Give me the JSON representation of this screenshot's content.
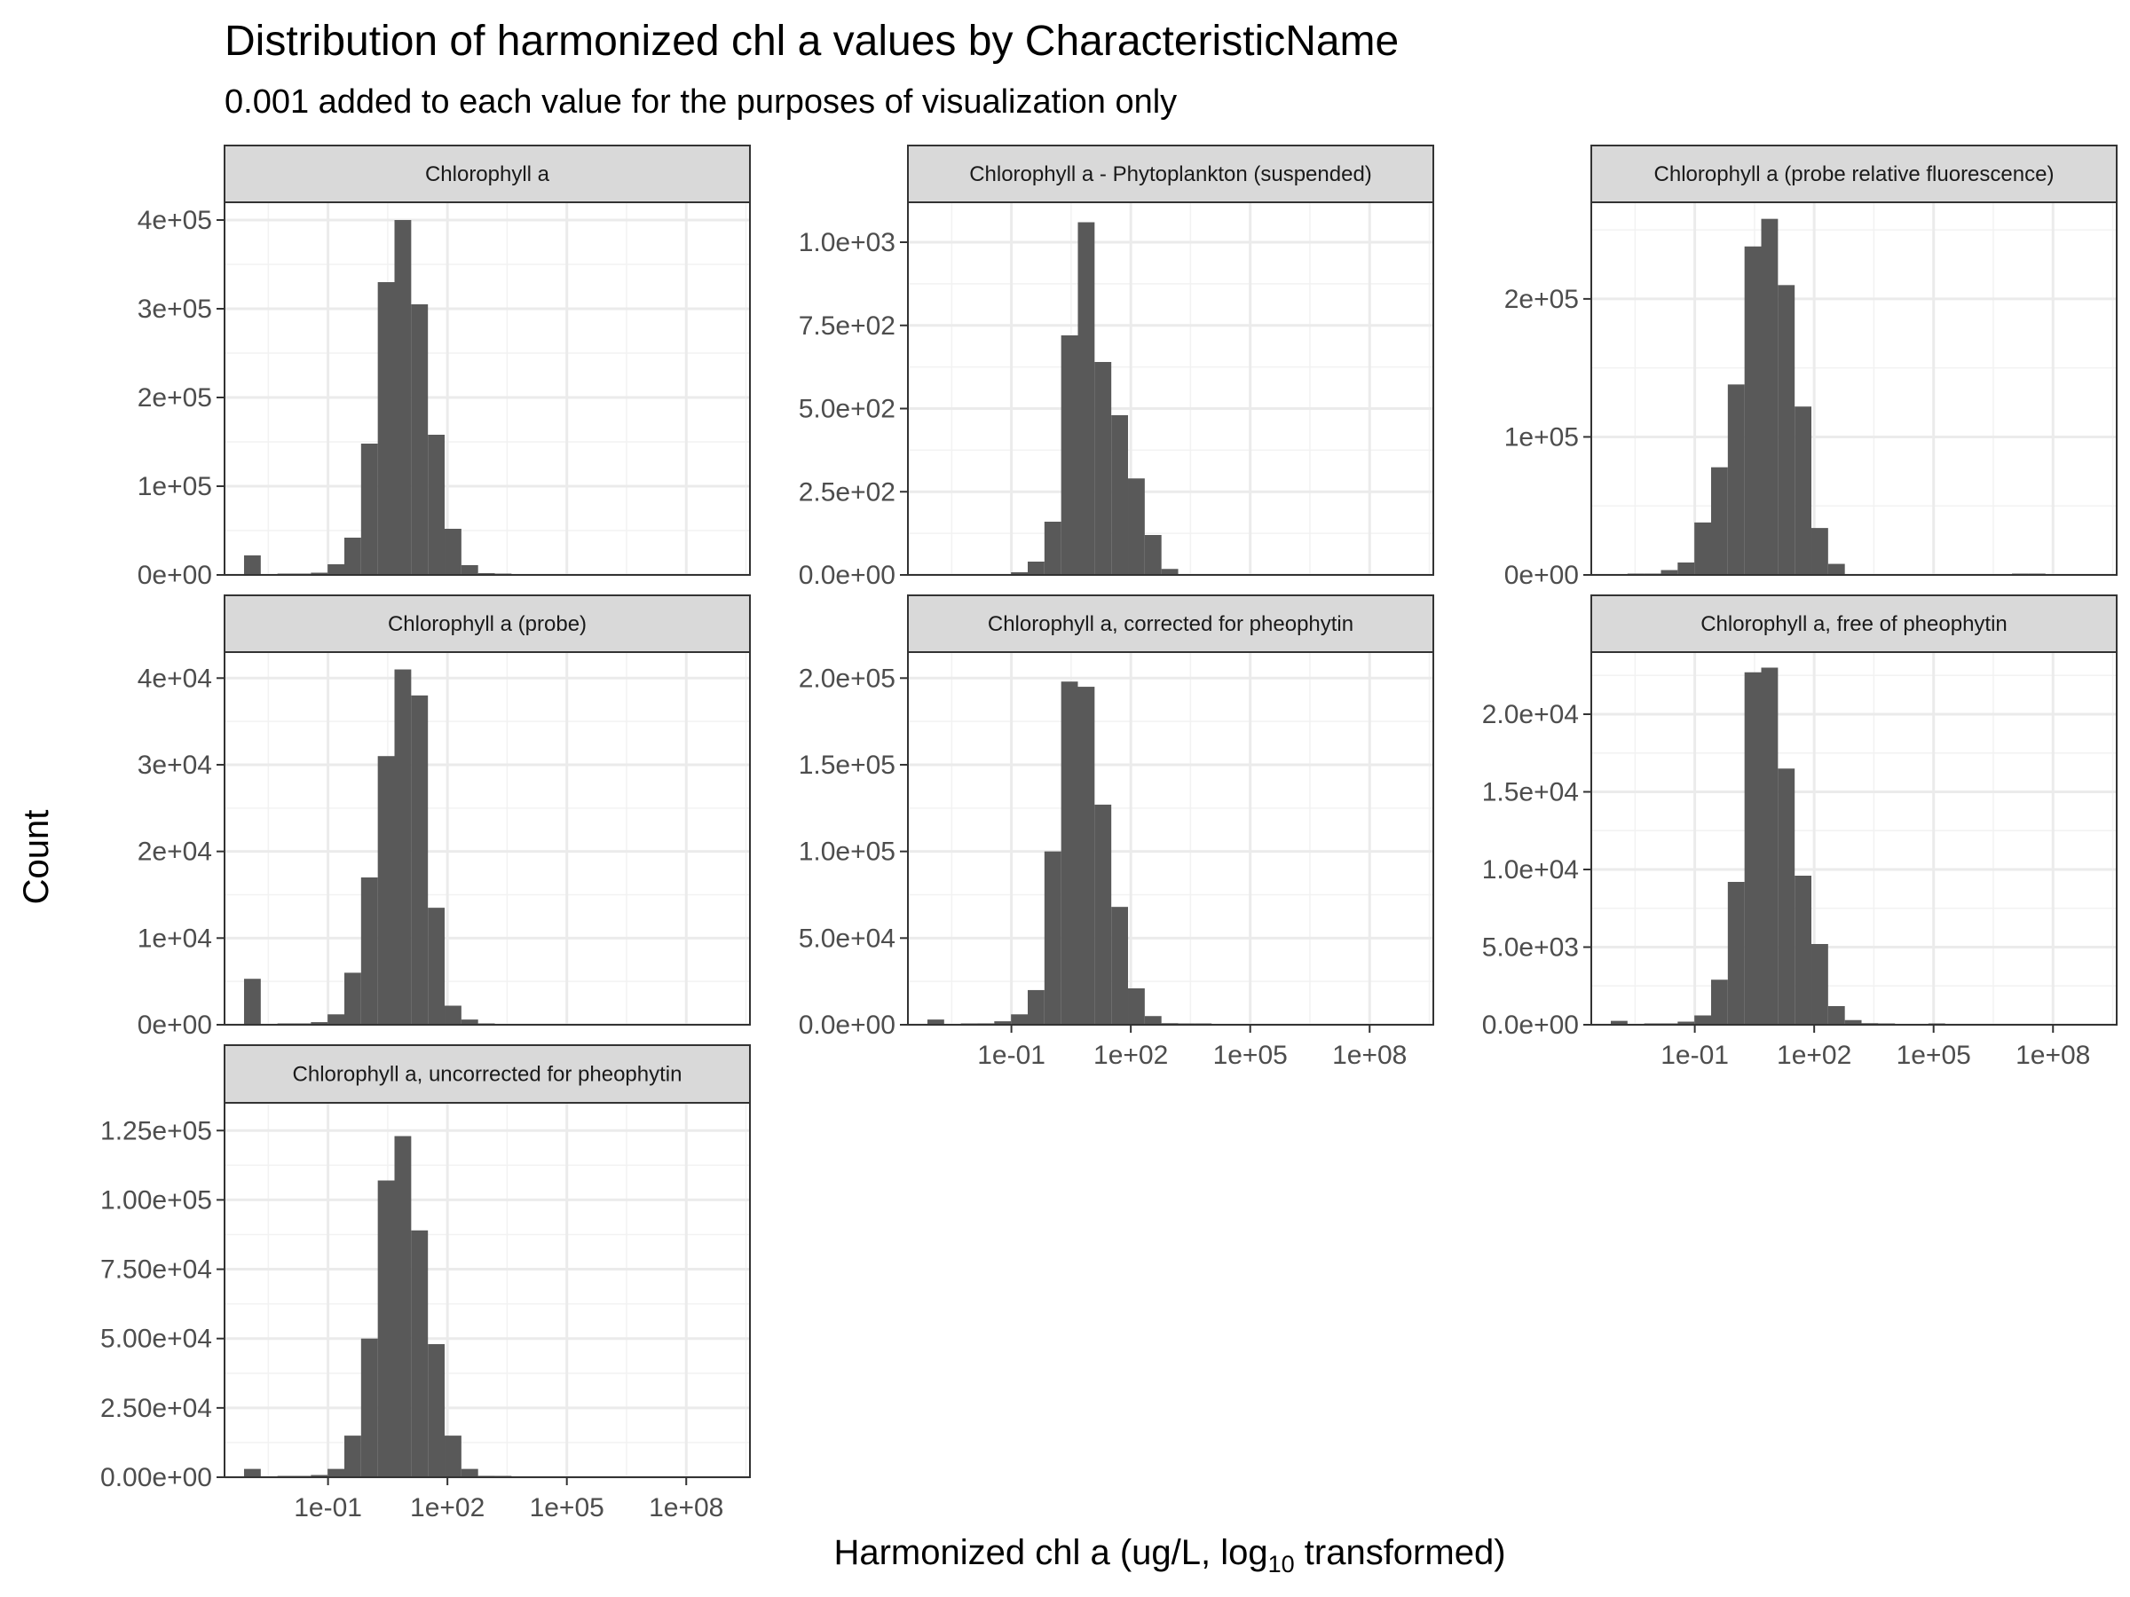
{
  "chart_data": {
    "type": "bar",
    "title": "Distribution of harmonized chl a values by CharacteristicName",
    "subtitle": "0.001 added to each value for the purposes of visualization only",
    "xlabel": {
      "prefix": "Harmonized chl a (ug/L,  log",
      "sub": "10",
      "suffix": "  transformed)"
    },
    "ylabel": "Count",
    "x_scale": "log10",
    "x_tick_labels": [
      "1e-01",
      "1e+02",
      "1e+05",
      "1e+08"
    ],
    "x_tick_values": [
      -1,
      2,
      5,
      8
    ],
    "x_limits_log10": [
      -3.6,
      9.6
    ],
    "bin_width_log10": 0.42,
    "bin_centers_log10": [
      -2.9,
      -2.48,
      -2.06,
      -1.64,
      -1.22,
      -0.8,
      -0.38,
      0.04,
      0.46,
      0.88,
      1.3,
      1.72,
      2.14,
      2.56,
      2.98,
      3.4,
      3.82,
      4.24,
      4.66,
      5.08,
      5.5,
      5.92,
      6.34,
      6.76,
      7.18,
      7.6,
      8.02,
      8.44
    ],
    "grid": true,
    "panels": [
      {
        "name": "Chlorophyll a",
        "y_ticks": [
          0,
          100000,
          200000,
          300000,
          400000
        ],
        "y_tick_labels": [
          "0e+00",
          "1e+05",
          "2e+05",
          "3e+05",
          "4e+05"
        ],
        "ylim": [
          0,
          420000
        ],
        "show_x_axis": false,
        "values": [
          22000,
          0,
          700,
          1000,
          2500,
          12000,
          42000,
          148000,
          330000,
          400000,
          305000,
          158000,
          52000,
          11000,
          2000,
          300,
          0,
          0,
          0,
          0,
          0,
          0,
          0,
          0,
          0,
          0,
          0,
          0
        ]
      },
      {
        "name": "Chlorophyll a - Phytoplankton (suspended)",
        "y_ticks": [
          0,
          250,
          500,
          750,
          1000
        ],
        "y_tick_labels": [
          "0.0e+00",
          "2.5e+02",
          "5.0e+02",
          "7.5e+02",
          "1.0e+03"
        ],
        "ylim": [
          0,
          1120
        ],
        "show_x_axis": false,
        "values": [
          0,
          0,
          0,
          0,
          0,
          8,
          40,
          160,
          720,
          1060,
          640,
          480,
          290,
          120,
          18,
          0,
          0,
          0,
          0,
          0,
          0,
          0,
          0,
          0,
          0,
          0,
          0,
          0
        ]
      },
      {
        "name": "Chlorophyll a (probe relative fluorescence)",
        "y_ticks": [
          0,
          100000,
          200000
        ],
        "y_tick_labels": [
          "0e+00",
          "1e+05",
          "2e+05"
        ],
        "ylim": [
          0,
          270000
        ],
        "show_x_axis": false,
        "values": [
          0,
          400,
          800,
          3500,
          9000,
          38000,
          78000,
          138000,
          238000,
          258000,
          210000,
          122000,
          34000,
          8000,
          0,
          0,
          0,
          0,
          0,
          0,
          0,
          0,
          0,
          0,
          400,
          300,
          0,
          0
        ]
      },
      {
        "name": "Chlorophyll a (probe)",
        "y_ticks": [
          0,
          10000,
          20000,
          30000,
          40000
        ],
        "y_tick_labels": [
          "0e+00",
          "1e+04",
          "2e+04",
          "3e+04",
          "4e+04"
        ],
        "ylim": [
          0,
          43000
        ],
        "show_x_axis": false,
        "values": [
          5300,
          0,
          100,
          150,
          300,
          1200,
          6000,
          17000,
          31000,
          41000,
          38000,
          13500,
          2200,
          600,
          80,
          0,
          0,
          0,
          0,
          0,
          0,
          0,
          0,
          0,
          0,
          0,
          0,
          0
        ]
      },
      {
        "name": "Chlorophyll a, corrected for pheophytin",
        "y_ticks": [
          0,
          50000,
          100000,
          150000,
          200000
        ],
        "y_tick_labels": [
          "0.0e+00",
          "5.0e+04",
          "1.0e+05",
          "1.5e+05",
          "2.0e+05"
        ],
        "ylim": [
          0,
          215000
        ],
        "show_x_axis": true,
        "values": [
          3000,
          0,
          400,
          800,
          2000,
          6000,
          20000,
          100000,
          198000,
          195000,
          127000,
          68000,
          21000,
          5000,
          900,
          200,
          100,
          0,
          0,
          0,
          0,
          0,
          0,
          0,
          0,
          0,
          0,
          0
        ]
      },
      {
        "name": "Chlorophyll a, free of pheophytin",
        "y_ticks": [
          0,
          5000,
          10000,
          15000,
          20000
        ],
        "y_tick_labels": [
          "0.0e+00",
          "5.0e+03",
          "1.0e+04",
          "1.5e+04",
          "2.0e+04"
        ],
        "ylim": [
          0,
          24000
        ],
        "show_x_axis": true,
        "values": [
          250,
          0,
          50,
          80,
          200,
          600,
          2900,
          9200,
          22700,
          23000,
          16500,
          9600,
          5200,
          1200,
          300,
          100,
          40,
          0,
          0,
          30,
          0,
          0,
          0,
          0,
          0,
          0,
          0,
          0
        ]
      },
      {
        "name": "Chlorophyll a, uncorrected for pheophytin",
        "y_ticks": [
          0,
          25000,
          50000,
          75000,
          100000,
          125000
        ],
        "y_tick_labels": [
          "0.00e+00",
          "2.50e+04",
          "5.00e+04",
          "7.50e+04",
          "1.00e+05",
          "1.25e+05"
        ],
        "ylim": [
          0,
          135000
        ],
        "show_x_axis": true,
        "values": [
          3000,
          0,
          200,
          400,
          800,
          3000,
          15000,
          50000,
          107000,
          123000,
          89000,
          48000,
          15000,
          3000,
          500,
          100,
          0,
          0,
          0,
          0,
          0,
          0,
          0,
          0,
          0,
          0,
          0,
          0
        ]
      }
    ]
  }
}
